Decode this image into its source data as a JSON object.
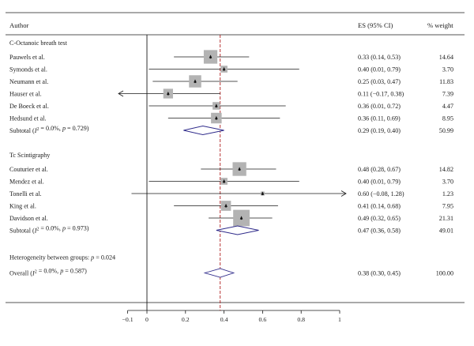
{
  "chart_data": {
    "type": "forest",
    "headers": {
      "author": "Author",
      "es": "ES (95% CI)",
      "weight": "% weight"
    },
    "xlim": [
      -0.1,
      1
    ],
    "xticks": [
      -0.1,
      0,
      0.2,
      0.4,
      0.6,
      0.8,
      1
    ],
    "xtick_labels": [
      "−0.1",
      "0",
      "0.2",
      "0.4",
      "0.6",
      "0.8",
      "1"
    ],
    "reference_line": 0.38,
    "groups": [
      {
        "name": "C-Octanoic breath test",
        "studies": [
          {
            "label": "Pauwels et al.",
            "es": 0.33,
            "lo": 0.14,
            "hi": 0.53,
            "es_text": "0.33 (0.14, 0.53)",
            "weight": 14.64,
            "weight_text": "14.64",
            "arrow": ""
          },
          {
            "label": "Symonds et al.",
            "es": 0.4,
            "lo": 0.01,
            "hi": 0.79,
            "es_text": "0.40 (0.01, 0.79)",
            "weight": 3.7,
            "weight_text": "3.70",
            "arrow": ""
          },
          {
            "label": "Neumann et al.",
            "es": 0.25,
            "lo": 0.03,
            "hi": 0.47,
            "es_text": "0.25 (0.03, 0.47)",
            "weight": 11.83,
            "weight_text": "11.83",
            "arrow": ""
          },
          {
            "label": "Hauser et al.",
            "es": 0.11,
            "lo": -0.17,
            "hi": 0.38,
            "es_text": "0.11 (−0.17, 0.38)",
            "weight": 7.39,
            "weight_text": "7.39",
            "arrow": "left"
          },
          {
            "label": "De Boeck et al.",
            "es": 0.36,
            "lo": 0.01,
            "hi": 0.72,
            "es_text": "0.36 (0.01, 0.72)",
            "weight": 4.47,
            "weight_text": "4.47",
            "arrow": ""
          },
          {
            "label": "Hedsund et al.",
            "es": 0.36,
            "lo": 0.11,
            "hi": 0.69,
            "es_text": "0.36 (0.11, 0.69)",
            "weight": 8.95,
            "weight_text": "8.95",
            "arrow": ""
          }
        ],
        "subtotal": {
          "prefix": "Subtotal (",
          "i2_letter": "I",
          "i2_sup": "2",
          "stats": " = 0.0%, ",
          "p_letter": "p",
          "p_value": " = 0.729)",
          "es": 0.29,
          "lo": 0.19,
          "hi": 0.4,
          "es_text": "0.29 (0.19, 0.40)",
          "weight": 50.99,
          "weight_text": "50.99"
        }
      },
      {
        "name": "Tc Scintigraphy",
        "studies": [
          {
            "label": "Couturier et al.",
            "es": 0.48,
            "lo": 0.28,
            "hi": 0.67,
            "es_text": "0.48 (0.28, 0.67)",
            "weight": 14.82,
            "weight_text": "14.82",
            "arrow": ""
          },
          {
            "label": "Mendez et al.",
            "es": 0.4,
            "lo": 0.01,
            "hi": 0.79,
            "es_text": "0.40 (0.01, 0.79)",
            "weight": 3.7,
            "weight_text": "3.70",
            "arrow": ""
          },
          {
            "label": "Tonelli et al.",
            "es": 0.6,
            "lo": -0.08,
            "hi": 1.28,
            "es_text": "0.60 (−0.08, 1.28)",
            "weight": 1.23,
            "weight_text": "1.23",
            "arrow": "right"
          },
          {
            "label": "King et al.",
            "es": 0.41,
            "lo": 0.14,
            "hi": 0.68,
            "es_text": "0.41 (0.14, 0.68)",
            "weight": 7.95,
            "weight_text": "7.95",
            "arrow": ""
          },
          {
            "label": "Davidson et al.",
            "es": 0.49,
            "lo": 0.32,
            "hi": 0.65,
            "es_text": "0.49 (0.32, 0.65)",
            "weight": 21.31,
            "weight_text": "21.31",
            "arrow": ""
          }
        ],
        "subtotal": {
          "prefix": "Subtotal (",
          "i2_letter": "I",
          "i2_sup": "2",
          "stats": " = 0.0%, ",
          "p_letter": "p",
          "p_value": " = 0.973)",
          "es": 0.47,
          "lo": 0.36,
          "hi": 0.58,
          "es_text": "0.47 (0.36, 0.58)",
          "weight": 49.01,
          "weight_text": "49.01"
        }
      }
    ],
    "heterogeneity": {
      "prefix": "Heterogeneity between groups: ",
      "p_letter": "p",
      "p_value": " = 0.024"
    },
    "overall": {
      "prefix": "Overall (",
      "i2_letter": "I",
      "i2_sup": "2",
      "stats": " = 0.0%, ",
      "p_letter": "p",
      "p_value": " = 0.587)",
      "es": 0.38,
      "lo": 0.3,
      "hi": 0.45,
      "es_text": "0.38 (0.30, 0.45)",
      "weight": 100.0,
      "weight_text": "100.00"
    },
    "colors": {
      "line": "#1a1a1a",
      "box": "#b3b3b3",
      "diamond": "#2e2a8a",
      "reference": "#b02020"
    }
  }
}
